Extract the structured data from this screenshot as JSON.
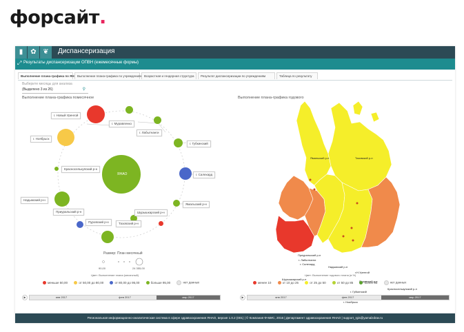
{
  "logo": {
    "text": "форсайт",
    "dot": "."
  },
  "app": {
    "title": "Диспансеризация",
    "toolbar_icons": [
      "bar-chart-icon",
      "lotus-icon",
      "hands-icon"
    ],
    "breadcrumb": "Результаты диспансеризации ОПВН (ежемесячные формы)",
    "tabs": [
      {
        "label": "Выполнение плана-графика по ЯНАО",
        "active": true
      },
      {
        "label": "Выполнение плана-графика по учреждениям",
        "active": false
      },
      {
        "label": "Возрастная и гендерная структура",
        "active": false
      },
      {
        "label": "Результат диспансеризации по учреждениям",
        "active": false
      },
      {
        "label": "Таблица по результату",
        "active": false
      }
    ],
    "filter": {
      "placeholder": "Выберите месяцы для анализа",
      "value": "(Выделено 3 из 26)"
    }
  },
  "left_panel": {
    "title": "Выполнение плана-графика помесячное",
    "center_label": "ЯНАО",
    "bubbles": [
      {
        "label": "г. Новый Уренгой",
        "color": "#e8382c",
        "value": "менее 50,00"
      },
      {
        "label": "г. Муравленко",
        "color": "#7db522"
      },
      {
        "label": "г. Лабытнанги",
        "color": "#7db522"
      },
      {
        "label": "г. Губкинский",
        "color": "#7db522"
      },
      {
        "label": "г. Салехард",
        "color": "#4a67c9"
      },
      {
        "label": "Ямальский р-н",
        "color": "#7db522"
      },
      {
        "label": "Шурышкарский р-н",
        "color": "#e8382c"
      },
      {
        "label": "Тазовский р-н",
        "color": "#7db522"
      },
      {
        "label": "Пуровский р-н",
        "color": "#4a67c9"
      },
      {
        "label": "Приуральский р-н",
        "color": "#7db522"
      },
      {
        "label": "Надымский р-н",
        "color": "#7db522"
      },
      {
        "label": "Красноселькупский р-н",
        "color": "#7db522"
      },
      {
        "label": "г. Ноябрьск",
        "color": "#f7c948"
      }
    ],
    "size_caption": "Размер: План месячный",
    "size_min": "90,00",
    "size_max": "24 355,00",
    "color_caption": "Цвет: Выполнение плана (месячный)",
    "legend": [
      {
        "label": "меньше 50,00",
        "color": "#e8382c"
      },
      {
        "label": "от 50,00 до 80,00",
        "color": "#f7c948"
      },
      {
        "label": "от 80,00 до 95,00",
        "color": "#4a67c9"
      },
      {
        "label": "больше 95,00",
        "color": "#7db522"
      },
      {
        "label": "нет данных",
        "color": "#e6e6e6"
      }
    ],
    "timeline": [
      "янв 2017",
      "фев 2017",
      "мар 2017"
    ]
  },
  "right_panel": {
    "title": "Выполнение плана-графика годового",
    "regions": [
      "Ямальский р-н",
      "Тазовский р-н",
      "Приуральский р-н",
      "Шурышкарский р-н",
      "Надымский р-н",
      "г. Лабытнанги",
      "г. Салехард",
      "г. Ноябрьск",
      "Пуровский р-н",
      "г. Губкинский",
      "г. Муравленко",
      "Красноселькупский р-н",
      "г.Н.Уренгой"
    ],
    "color_caption": "Цвет: Выполнение годового плана (в %)",
    "legend": [
      {
        "label": "менее 10",
        "color": "#e8382c"
      },
      {
        "label": "от 10 до 25",
        "color": "#f08a4b"
      },
      {
        "label": "от 25 до 50",
        "color": "#f5ee2a"
      },
      {
        "label": "от 50 до 85",
        "color": "#b5d334"
      },
      {
        "label": "более 85",
        "color": "#5aa12d"
      },
      {
        "label": "нет данных",
        "color": "#e6e6e6"
      }
    ],
    "timeline": [
      "янв 2017",
      "фев 2017",
      "мар 2017"
    ]
  },
  "footer": "Региональная информационно-аналитическая система в сфере здравоохранения ЯНАО, версия 1.0.2 (001) | © Компания Ф-МИС, 2016 | Департамент здравоохранения ЯНАО | support_rgis@yamalzdrav.ru"
}
